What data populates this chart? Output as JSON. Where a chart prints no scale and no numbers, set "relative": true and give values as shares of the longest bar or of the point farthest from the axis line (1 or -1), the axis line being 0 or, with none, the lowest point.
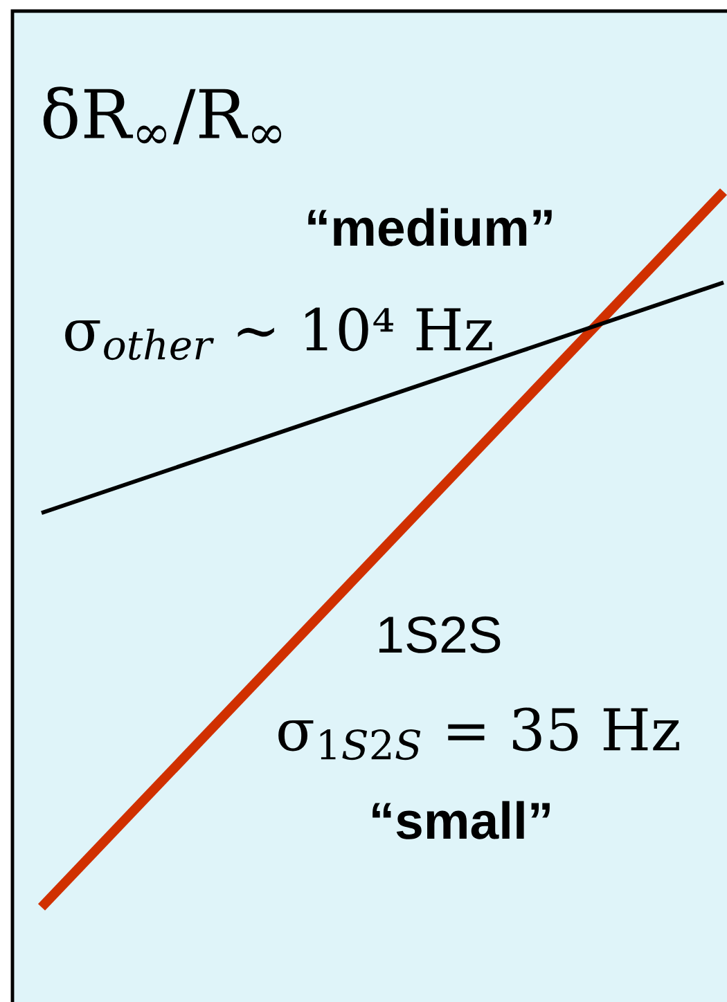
{
  "chart_data": {
    "type": "line",
    "relative": true,
    "ylabel": "δR$_{∞}$/R$_{∞}$",
    "categories": [
      null,
      null
    ],
    "series": [
      {
        "color": "#d03000",
        "values": [
          0,
          1
        ]
      },
      {
        "color": "#000000",
        "values": [
          0.551,
          0.873
        ]
      }
    ],
    "annotations": [
      "“medium”",
      "σ$_{other}$ ∼ 10⁴ Hz",
      "1S2S",
      "σ$_{1S2S}$ = 35 Hz",
      "“small”"
    ],
    "marker": "none",
    "line_style": "solid",
    "grid": false,
    "legend": false
  }
}
